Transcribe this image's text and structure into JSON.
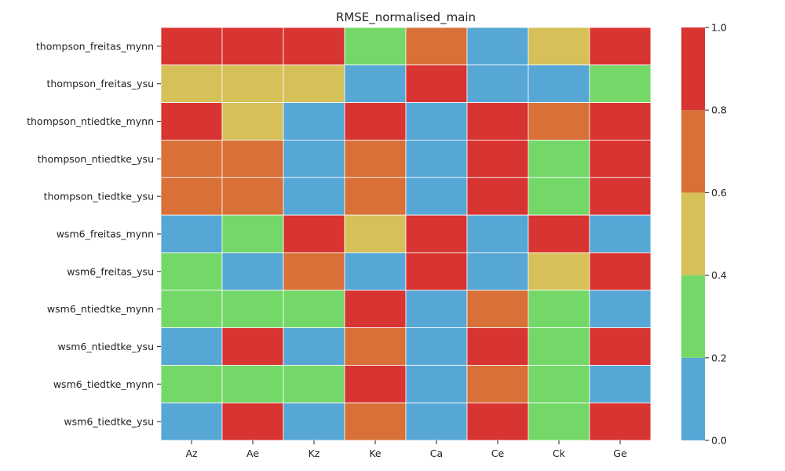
{
  "chart_data": {
    "type": "heatmap",
    "title": "RMSE_normalised_main",
    "xlabel": "",
    "ylabel": "",
    "x_categories": [
      "Az",
      "Ae",
      "Kz",
      "Ke",
      "Ca",
      "Ce",
      "Ck",
      "Ge"
    ],
    "y_categories": [
      "thompson_freitas_mynn",
      "thompson_freitas_ysu",
      "thompson_ntiedtke_mynn",
      "thompson_ntiedtke_ysu",
      "thompson_tiedtke_ysu",
      "wsm6_freitas_mynn",
      "wsm6_freitas_ysu",
      "wsm6_ntiedtke_mynn",
      "wsm6_ntiedtke_ysu",
      "wsm6_tiedtke_mynn",
      "wsm6_tiedtke_ysu"
    ],
    "values": [
      [
        0.9,
        0.9,
        0.9,
        0.3,
        0.7,
        0.1,
        0.5,
        0.9
      ],
      [
        0.5,
        0.5,
        0.5,
        0.1,
        0.9,
        0.1,
        0.1,
        0.3
      ],
      [
        0.9,
        0.5,
        0.1,
        0.9,
        0.1,
        0.9,
        0.7,
        0.9
      ],
      [
        0.7,
        0.7,
        0.1,
        0.7,
        0.1,
        0.9,
        0.3,
        0.9
      ],
      [
        0.7,
        0.7,
        0.1,
        0.7,
        0.1,
        0.9,
        0.3,
        0.9
      ],
      [
        0.1,
        0.3,
        0.9,
        0.5,
        0.9,
        0.1,
        0.9,
        0.1
      ],
      [
        0.3,
        0.1,
        0.7,
        0.1,
        0.9,
        0.1,
        0.5,
        0.9
      ],
      [
        0.3,
        0.3,
        0.3,
        0.9,
        0.1,
        0.7,
        0.3,
        0.1
      ],
      [
        0.1,
        0.9,
        0.1,
        0.7,
        0.1,
        0.9,
        0.3,
        0.9
      ],
      [
        0.3,
        0.3,
        0.3,
        0.9,
        0.1,
        0.7,
        0.3,
        0.1
      ],
      [
        0.1,
        0.9,
        0.1,
        0.7,
        0.1,
        0.9,
        0.3,
        0.9
      ]
    ],
    "colorbar": {
      "range": [
        0.0,
        1.0
      ],
      "bins": [
        {
          "from": 0.0,
          "to": 0.2,
          "color": "#57a7d6"
        },
        {
          "from": 0.2,
          "to": 0.4,
          "color": "#74d869"
        },
        {
          "from": 0.4,
          "to": 0.6,
          "color": "#d6c058"
        },
        {
          "from": 0.6,
          "to": 0.8,
          "color": "#d87037"
        },
        {
          "from": 0.8,
          "to": 1.0,
          "color": "#d83431"
        }
      ],
      "tick_labels": [
        "0.0",
        "0.2",
        "0.4",
        "0.6",
        "0.8",
        "1.0"
      ]
    },
    "grid": false,
    "legend_placement": "right"
  }
}
